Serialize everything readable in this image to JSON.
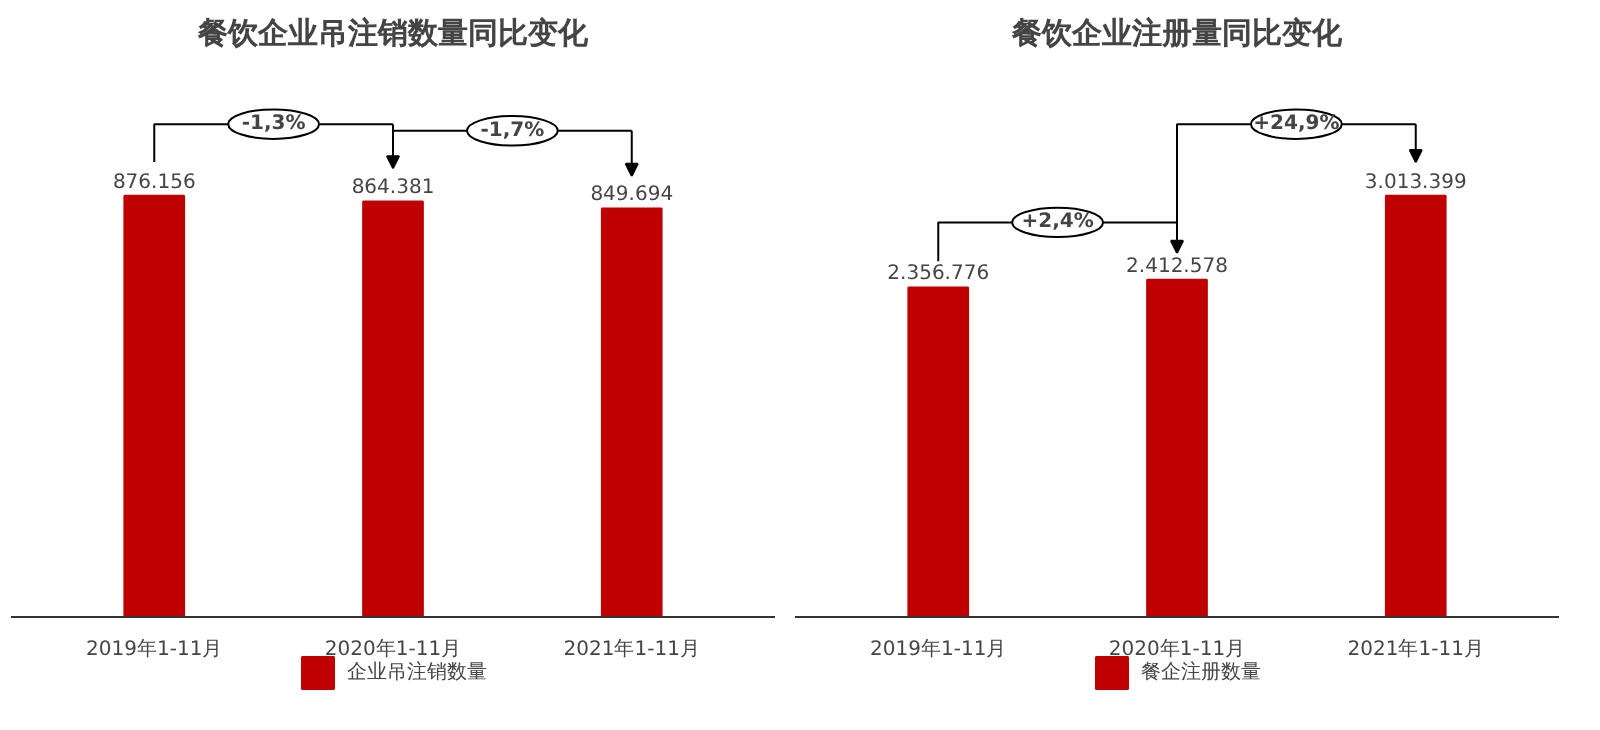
{
  "chart_data": [
    {
      "type": "bar",
      "title": "餐饮企业吊注销数量同比变化",
      "categories": [
        "2019年1-11月",
        "2020年1-11月",
        "2021年1-11月"
      ],
      "series": [
        {
          "name": "企业吊注销数量",
          "color": "#c00000",
          "values": [
            876156,
            864381,
            849694
          ],
          "value_labels": [
            "876.156",
            "864.381",
            "849.694"
          ]
        }
      ],
      "annotations": [
        "-1,3%",
        "-1,7%"
      ],
      "legend": "bottom"
    },
    {
      "type": "bar",
      "title": "餐饮企业注册量同比变化",
      "categories": [
        "2019年1-11月",
        "2020年1-11月",
        "2021年1-11月"
      ],
      "series": [
        {
          "name": "餐企注册数量",
          "color": "#c00000",
          "values": [
            2356776,
            2412578,
            3013399
          ],
          "value_labels": [
            "2.356.776",
            "2.412.578",
            "3.013.399"
          ]
        }
      ],
      "annotations": [
        "+2,4%",
        "+24,9%"
      ],
      "legend": "bottom"
    }
  ]
}
